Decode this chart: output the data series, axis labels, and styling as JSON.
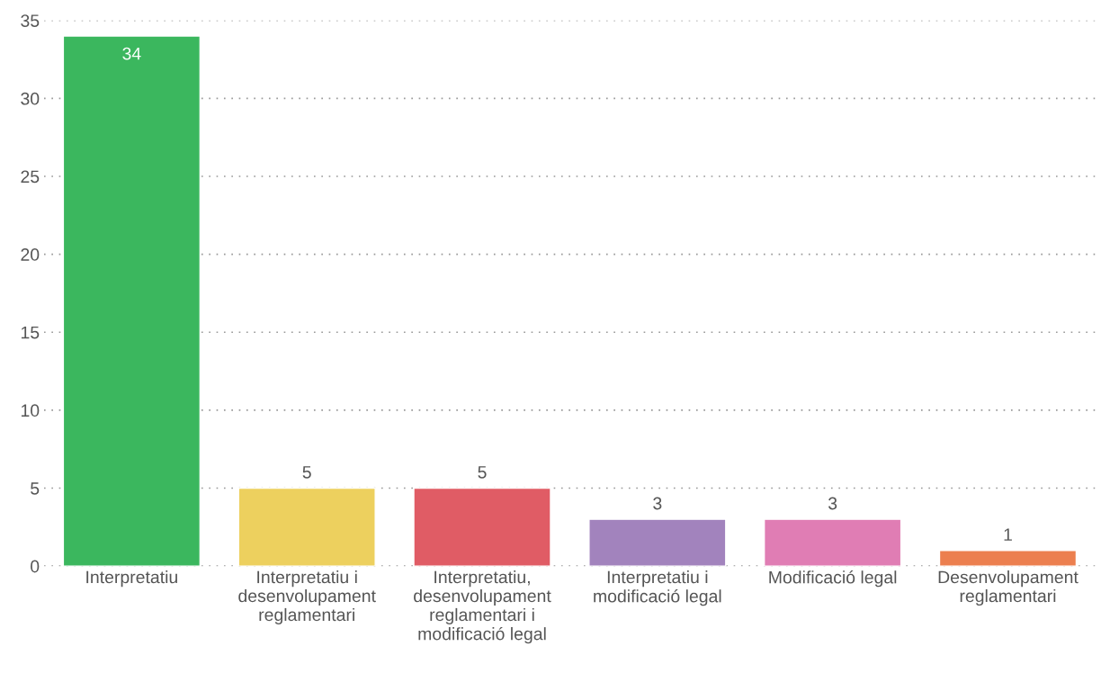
{
  "chart_data": {
    "type": "bar",
    "categories": [
      "Interpretatiu",
      "Interpretatiu i desenvolupament reglamentari",
      "Interpretatiu, desenvolupament reglamentari i modificació legal",
      "Interpretatiu i modificació legal",
      "Modificació legal",
      "Desenvolupament reglamentari"
    ],
    "values": [
      34,
      5,
      5,
      3,
      3,
      1
    ],
    "colors": [
      "#3bb75e",
      "#edd05e",
      "#e05c65",
      "#a283bd",
      "#e07db4",
      "#ec7f4f"
    ],
    "ylim": [
      0,
      35
    ],
    "yticks": [
      0,
      5,
      10,
      15,
      20,
      25,
      30,
      35
    ],
    "grid": "y",
    "data_labels": true
  }
}
